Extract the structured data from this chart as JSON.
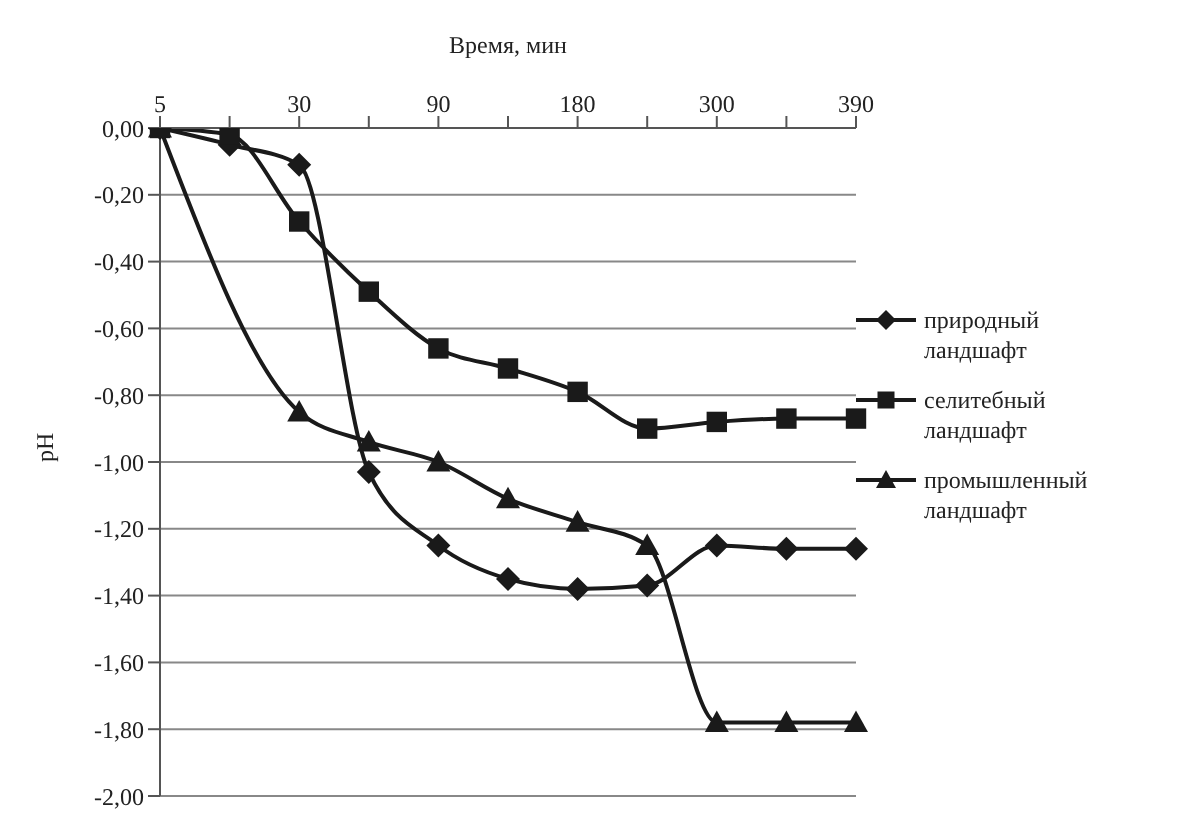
{
  "chart_data": {
    "type": "line",
    "xlabel": "Время, мин",
    "ylabel": "pH",
    "categories": [
      "5",
      null,
      "30",
      null,
      "90",
      null,
      "180",
      null,
      "300",
      null,
      "390"
    ],
    "series": [
      {
        "name": "природный ландшафт",
        "color": "#1a1a1a",
        "marker": "diamond",
        "values": [
          0,
          -0.05,
          -0.11,
          -1.03,
          -1.25,
          -1.35,
          -1.38,
          -1.37,
          -1.25,
          -1.26,
          -1.26
        ]
      },
      {
        "name": "селитебный ландшафт",
        "color": "#1a1a1a",
        "marker": "square",
        "values": [
          0,
          -0.02,
          -0.28,
          -0.49,
          -0.66,
          -0.72,
          -0.79,
          -0.9,
          -0.88,
          -0.87,
          -0.87
        ]
      },
      {
        "name": "промышленный ландшафт",
        "color": "#1a1a1a",
        "marker": "triangle",
        "values": [
          0,
          null,
          -0.85,
          -0.94,
          -1.0,
          -1.11,
          -1.18,
          -1.25,
          -1.78,
          -1.78,
          -1.78
        ]
      }
    ],
    "ylim": [
      -2,
      0
    ],
    "yticks": [
      {
        "value": 0,
        "label": "0,00"
      },
      {
        "value": -0.2,
        "label": "-0,20"
      },
      {
        "value": -0.4,
        "label": "-0,40"
      },
      {
        "value": -0.6,
        "label": "-0,60"
      },
      {
        "value": -0.8,
        "label": "-0,80"
      },
      {
        "value": -1,
        "label": "-1,00"
      },
      {
        "value": -1.2,
        "label": "-1,20"
      },
      {
        "value": -1.4,
        "label": "-1,40"
      },
      {
        "value": -1.6,
        "label": "-1,60"
      },
      {
        "value": -1.8,
        "label": "-1,80"
      },
      {
        "value": -2,
        "label": "-2,00"
      }
    ],
    "grid": "y",
    "legend": "right",
    "line_style": "solid"
  }
}
